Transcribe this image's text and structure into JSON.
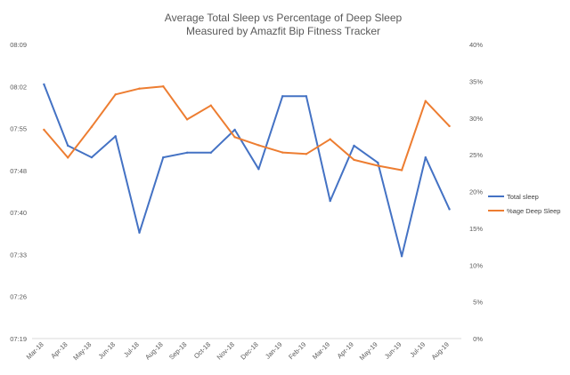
{
  "chart_data": {
    "type": "line",
    "title": "Average Total Sleep vs Percentage of Deep Sleep",
    "subtitle": "Measured by Amazfit Bip Fitness Tracker",
    "categories": [
      "Mar-18",
      "Apr-18",
      "May-18",
      "Jun-18",
      "Jul-18",
      "Aug-18",
      "Sep-18",
      "Oct-18",
      "Nov-18",
      "Dec-18",
      "Jan-19",
      "Feb-19",
      "Mar-19",
      "Apr-19",
      "May-19",
      "Jun-19",
      "Jul-19",
      "Aug-19"
    ],
    "y_left": {
      "tick_labels": [
        "07:19",
        "07:26",
        "07:33",
        "07:40",
        "07:48",
        "07:55",
        "08:02",
        "08:09"
      ],
      "ylim_minutes": [
        439,
        489
      ]
    },
    "y_right": {
      "tick_labels": [
        "0%",
        "5%",
        "10%",
        "15%",
        "20%",
        "25%",
        "30%",
        "35%",
        "40%"
      ],
      "ylim_percent": [
        0,
        40
      ]
    },
    "series": [
      {
        "name": "Total sleep",
        "axis": "left",
        "color": "#4472C4",
        "unit": "minutes",
        "values": [
          482.2,
          471.8,
          469.8,
          473.4,
          457.0,
          469.8,
          470.6,
          470.6,
          474.5,
          467.8,
          480.2,
          480.2,
          462.4,
          471.8,
          468.9,
          453.0,
          469.8,
          461.0
        ]
      },
      {
        "name": "%age Deep Sleep",
        "axis": "right",
        "color": "#ED7D31",
        "unit": "percent",
        "values": [
          28.4,
          24.6,
          28.8,
          33.2,
          34.0,
          34.3,
          29.8,
          31.7,
          27.4,
          26.3,
          25.3,
          25.1,
          27.1,
          24.3,
          23.5,
          22.9,
          32.3,
          28.9
        ]
      }
    ],
    "legend_position": "right",
    "gridlines": false
  }
}
